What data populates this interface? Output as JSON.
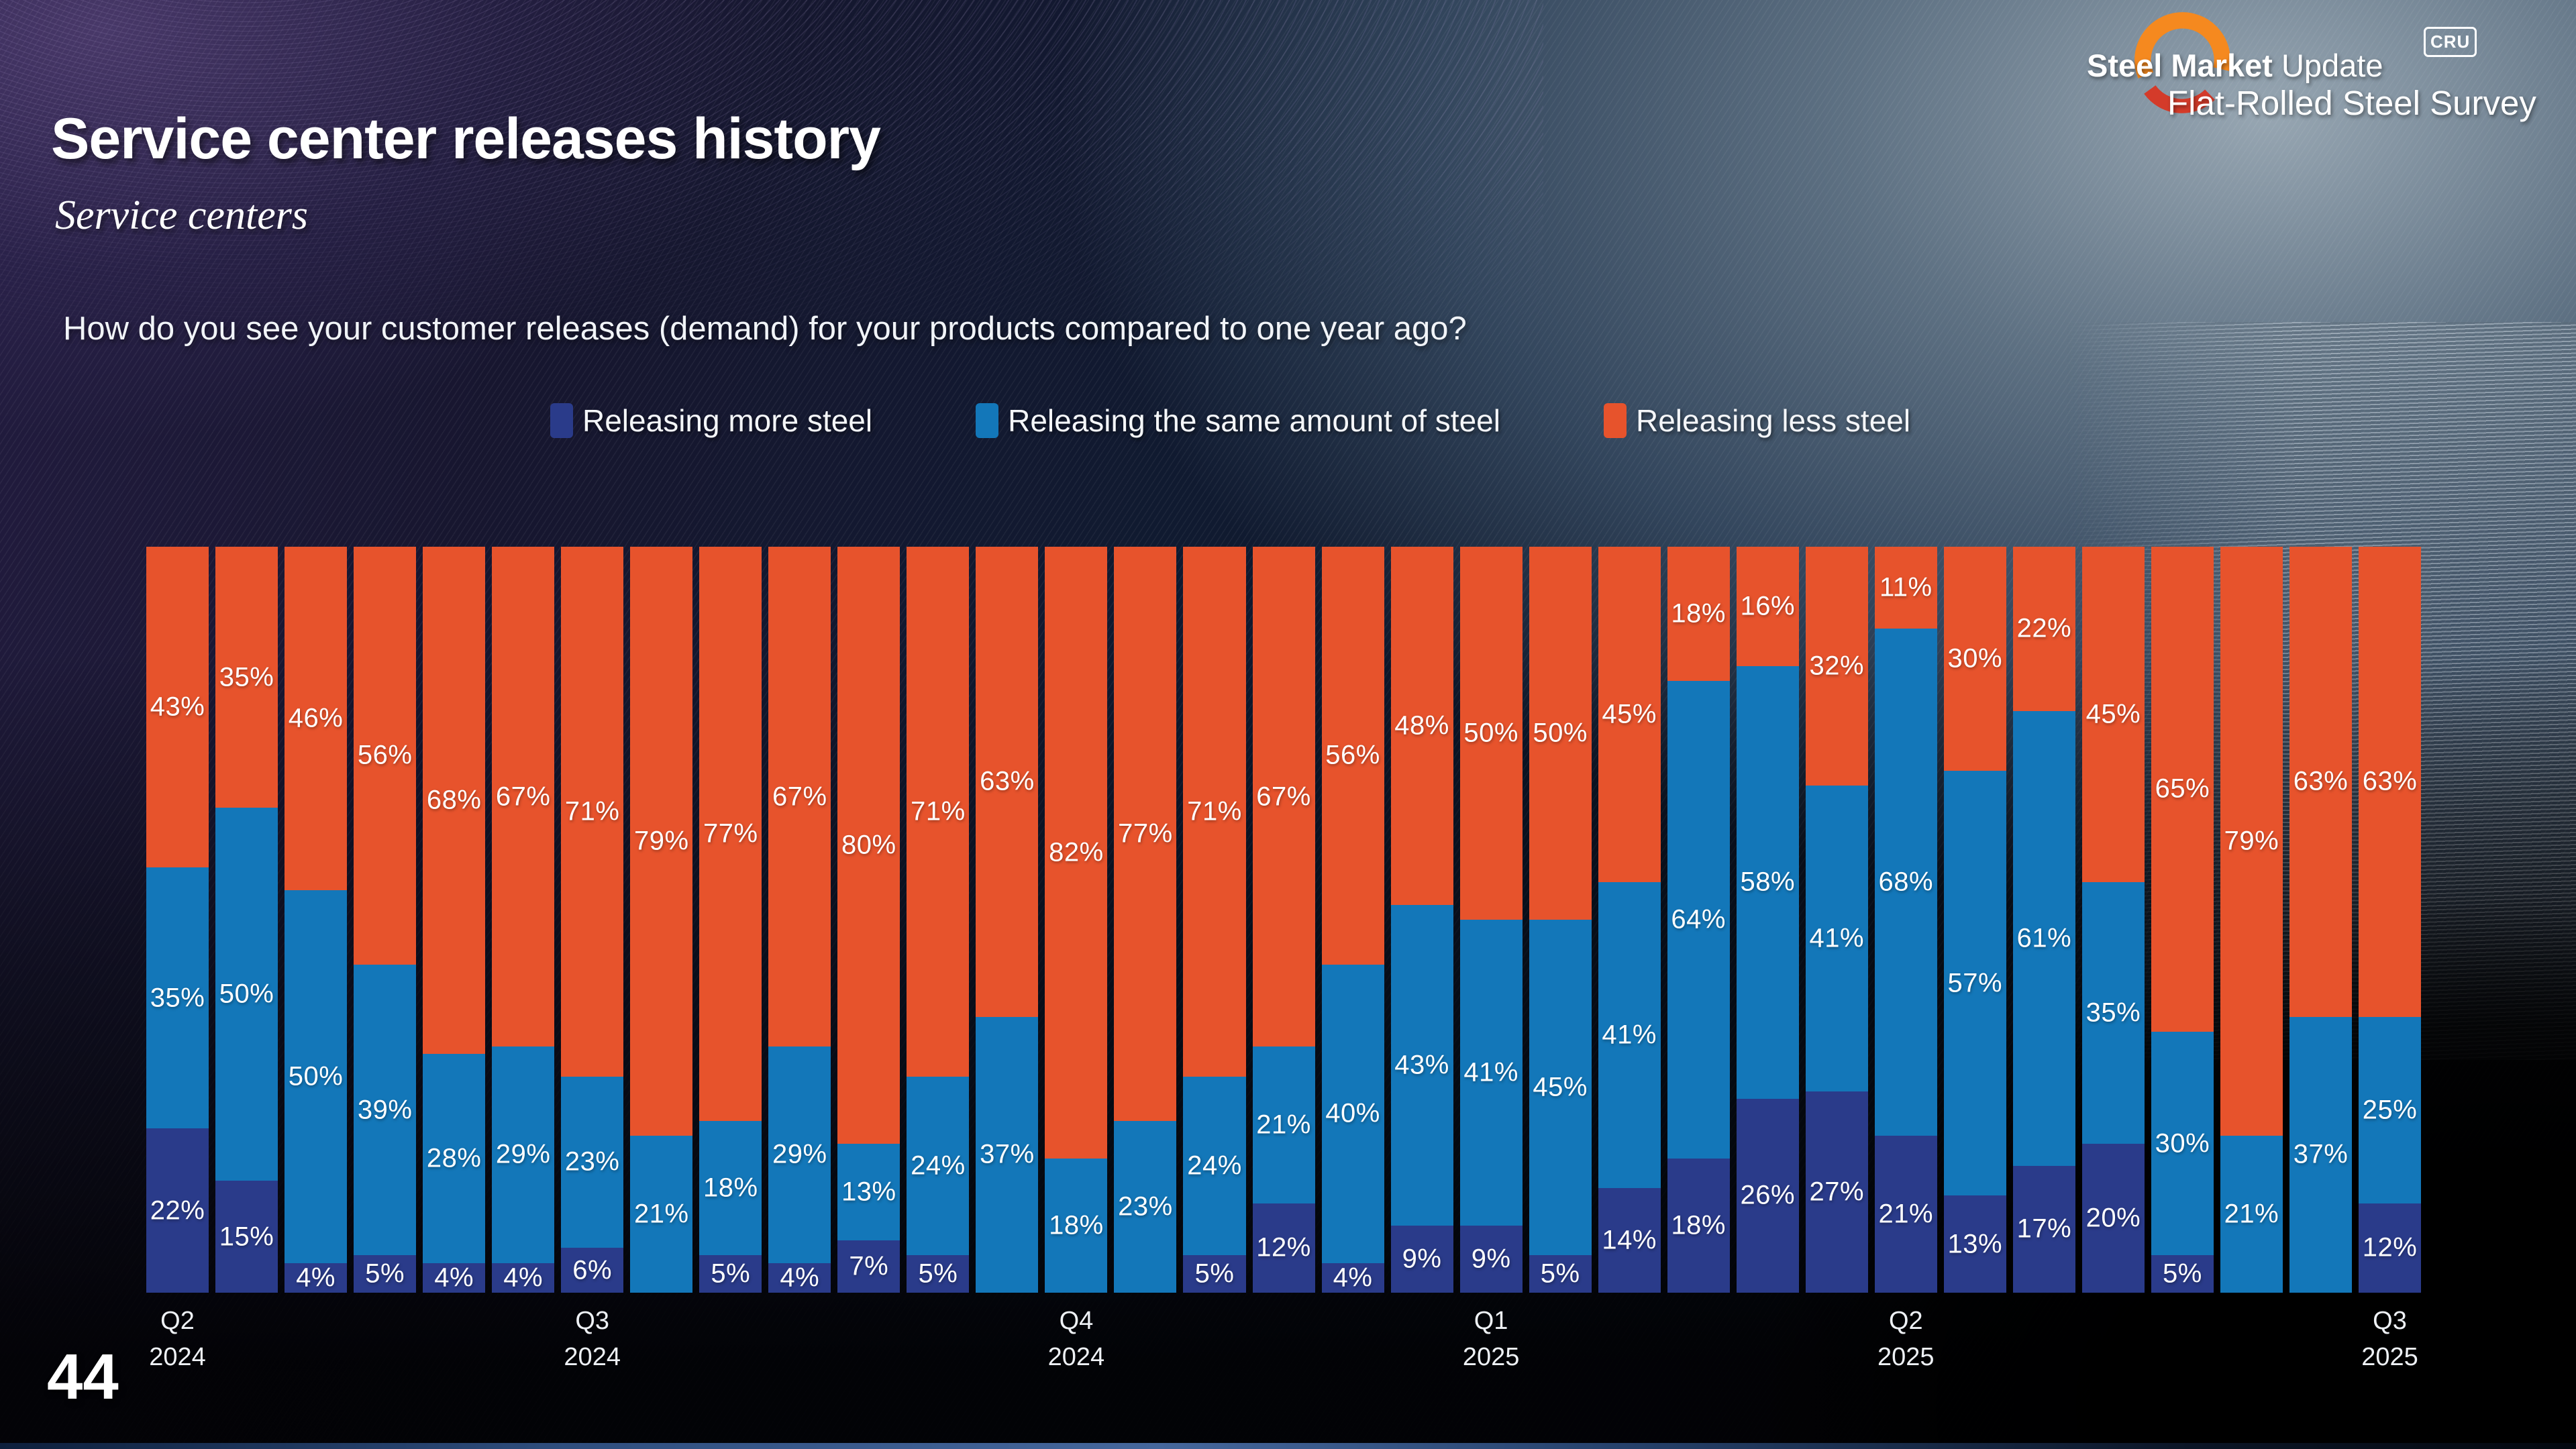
{
  "slide": {
    "title": "Service center releases history",
    "subtitle": "Service centers",
    "question": "How do you see your customer releases (demand) for your products compared to one year ago?",
    "page_number": "44"
  },
  "logo": {
    "brand_bold": "Steel Market",
    "brand_light": " Update",
    "badge": "CRU",
    "product_line": "Flat-Rolled Steel Survey",
    "crescent_top_color": "#F5891F",
    "crescent_bottom_color": "#D43B2A"
  },
  "legend": [
    {
      "label": "Releasing more steel",
      "color": "#2a3b8a"
    },
    {
      "label": "Releasing the same amount of steel",
      "color": "#1377b9"
    },
    {
      "label": "Releasing less steel",
      "color": "#e7532c"
    }
  ],
  "chart_data": {
    "type": "bar",
    "stacked": true,
    "unit": "%",
    "ylim": [
      0,
      100
    ],
    "grid": false,
    "legend_position": "top",
    "series_names": [
      "Releasing more steel",
      "Releasing the same amount of steel",
      "Releasing less steel"
    ],
    "colors": {
      "more": "#2a3b8a",
      "same": "#1377b9",
      "less": "#e7532c"
    },
    "bars": [
      {
        "more": 22,
        "same": 35,
        "less": 43,
        "quarter": "Q2",
        "year": "2024"
      },
      {
        "more": 15,
        "same": 50,
        "less": 35
      },
      {
        "more": 4,
        "same": 50,
        "less": 46
      },
      {
        "more": 5,
        "same": 39,
        "less": 56
      },
      {
        "more": 4,
        "same": 28,
        "less": 68
      },
      {
        "more": 4,
        "same": 29,
        "less": 67
      },
      {
        "more": 6,
        "same": 23,
        "less": 71,
        "quarter": "Q3",
        "year": "2024"
      },
      {
        "more": 0,
        "same": 21,
        "less": 79
      },
      {
        "more": 5,
        "same": 18,
        "less": 77
      },
      {
        "more": 4,
        "same": 29,
        "less": 67
      },
      {
        "more": 7,
        "same": 13,
        "less": 80
      },
      {
        "more": 5,
        "same": 24,
        "less": 71
      },
      {
        "more": 0,
        "same": 37,
        "less": 63
      },
      {
        "more": 0,
        "same": 18,
        "less": 82,
        "quarter": "Q4",
        "year": "2024"
      },
      {
        "more": 0,
        "same": 23,
        "less": 77
      },
      {
        "more": 5,
        "same": 24,
        "less": 71
      },
      {
        "more": 12,
        "same": 21,
        "less": 67
      },
      {
        "more": 4,
        "same": 40,
        "less": 56
      },
      {
        "more": 9,
        "same": 43,
        "less": 48
      },
      {
        "more": 9,
        "same": 41,
        "less": 50,
        "quarter": "Q1",
        "year": "2025"
      },
      {
        "more": 5,
        "same": 45,
        "less": 50
      },
      {
        "more": 14,
        "same": 41,
        "less": 45
      },
      {
        "more": 18,
        "same": 64,
        "less": 18
      },
      {
        "more": 26,
        "same": 58,
        "less": 16
      },
      {
        "more": 27,
        "same": 41,
        "less": 32
      },
      {
        "more": 21,
        "same": 68,
        "less": 11,
        "quarter": "Q2",
        "year": "2025"
      },
      {
        "more": 13,
        "same": 57,
        "less": 30
      },
      {
        "more": 17,
        "same": 61,
        "less": 22
      },
      {
        "more": 20,
        "same": 35,
        "less": 45
      },
      {
        "more": 5,
        "same": 30,
        "less": 65
      },
      {
        "more": 0,
        "same": 21,
        "less": 79
      },
      {
        "more": 0,
        "same": 37,
        "less": 63
      },
      {
        "more": 12,
        "same": 25,
        "less": 63,
        "quarter": "Q3",
        "year": "2025"
      }
    ]
  }
}
